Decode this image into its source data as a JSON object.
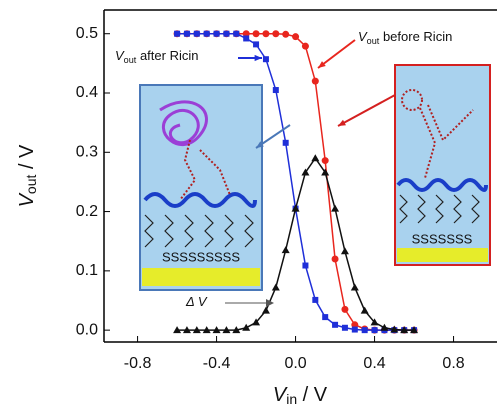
{
  "chart_data": {
    "type": "line",
    "x_label": {
      "italic": "V",
      "sub": "in",
      "rest": " / V"
    },
    "y_label": {
      "italic": "V",
      "sub": "out",
      "rest": " / V"
    },
    "x": [
      -0.6,
      -0.55,
      -0.5,
      -0.45,
      -0.4,
      -0.35,
      -0.3,
      -0.25,
      -0.2,
      -0.15,
      -0.1,
      -0.05,
      0,
      0.05,
      0.1,
      0.15,
      0.2,
      0.25,
      0.3,
      0.35,
      0.4,
      0.45,
      0.5,
      0.55,
      0.6
    ],
    "series": [
      {
        "name": "before Ricin",
        "color": "#e8261e",
        "marker": "circle",
        "values": [
          0.5,
          0.5,
          0.5,
          0.5,
          0.5,
          0.5,
          0.5,
          0.5,
          0.5,
          0.5,
          0.5,
          0.499,
          0.495,
          0.479,
          0.42,
          0.286,
          0.12,
          0.035,
          0.009,
          0.002,
          0,
          0,
          0,
          0,
          0
        ]
      },
      {
        "name": "after Ricin",
        "color": "#1f2fd8",
        "marker": "square",
        "values": [
          0.5,
          0.5,
          0.5,
          0.5,
          0.5,
          0.5,
          0.5,
          0.492,
          0.482,
          0.457,
          0.405,
          0.316,
          0.205,
          0.109,
          0.051,
          0.022,
          0.009,
          0.004,
          0.001,
          0,
          0,
          0,
          0,
          0,
          0
        ]
      },
      {
        "name": "Δ V",
        "color": "#111111",
        "marker": "triangle",
        "values": [
          0,
          0,
          0,
          0,
          0,
          0,
          0,
          0.004,
          0.013,
          0.033,
          0.072,
          0.135,
          0.205,
          0.266,
          0.29,
          0.266,
          0.205,
          0.133,
          0.072,
          0.033,
          0.013,
          0.004,
          0.001,
          0,
          0
        ]
      }
    ],
    "annotations": [
      {
        "italic": "V",
        "sub": "out",
        "rest": " after Ricin"
      },
      {
        "italic": "V",
        "sub": "out",
        "rest": " before Ricin"
      },
      {
        "italic": "Δ V"
      }
    ],
    "inset_texts": [
      "SSSSSSSSS",
      "SSSSSSS"
    ],
    "xlim": [
      -0.97,
      1.02
    ],
    "ylim": [
      -0.02,
      0.54
    ],
    "xticks": [
      -0.8,
      -0.4,
      {
        "value": 0,
        "label": "0.0"
      },
      0.4,
      0.8
    ],
    "yticks": [
      {
        "value": 0,
        "label": "0.0"
      },
      0.1,
      0.2,
      0.3,
      0.4,
      0.5
    ]
  }
}
